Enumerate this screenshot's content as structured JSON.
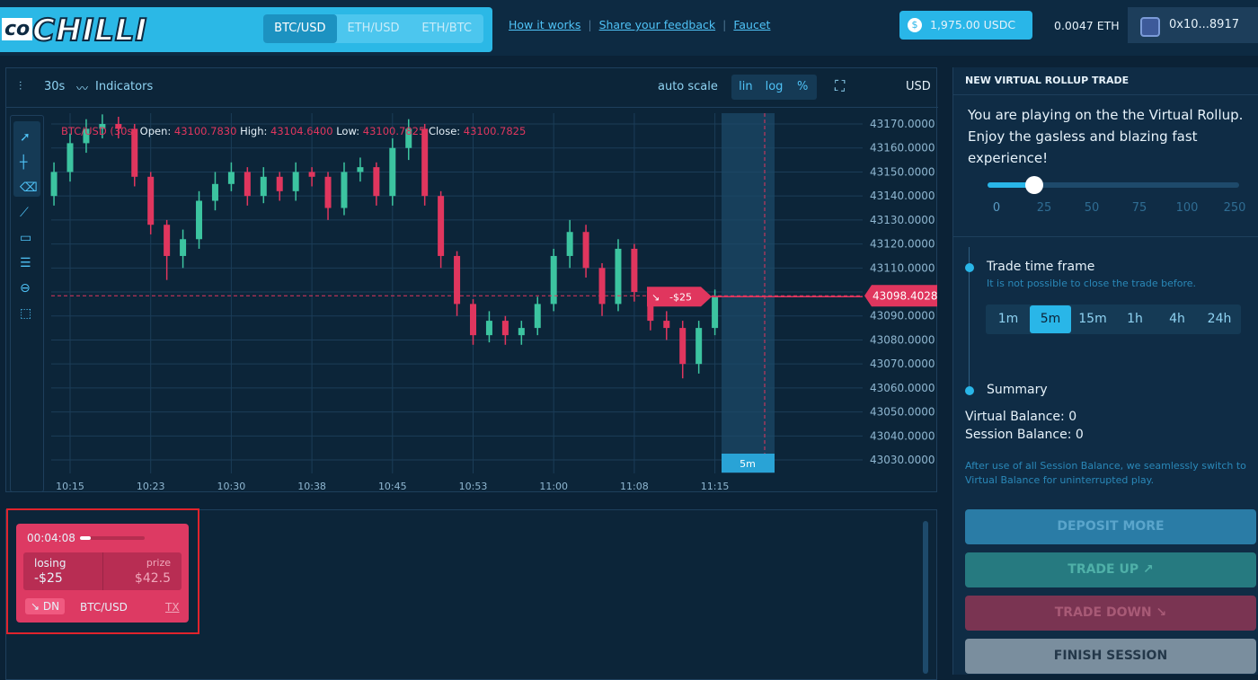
{
  "header": {
    "logo_prefix": "co",
    "logo": "CHILLI",
    "pairs": [
      "BTC/USD",
      "ETH/USD",
      "ETH/BTC"
    ],
    "active_pair": 0,
    "links": [
      "How it works",
      "Share your feedback",
      "Faucet"
    ],
    "balance": "1,975.00 USDC",
    "eth_balance": "0.0047 ETH",
    "wallet": "0x10...8917"
  },
  "toolbar": {
    "interval": "30s",
    "indicators": "Indicators",
    "auto_scale": "auto scale",
    "scales": [
      "lin",
      "log",
      "%"
    ],
    "currency": "USD"
  },
  "chart_data": {
    "type": "candlestick",
    "legend": {
      "title": "BTC/USD (30s)",
      "fields": [
        {
          "label": "Open:",
          "value": "43100.7830"
        },
        {
          "label": "High:",
          "value": "43104.6400"
        },
        {
          "label": "Low:",
          "value": "43100.7825"
        },
        {
          "label": "Close:",
          "value": "43100.7825"
        }
      ]
    },
    "categories": [
      null,
      "10:15",
      null,
      null,
      null,
      null,
      "10:23",
      null,
      null,
      null,
      null,
      "10:30",
      null,
      null,
      null,
      null,
      "10:38",
      null,
      null,
      null,
      null,
      "10:45",
      null,
      null,
      null,
      null,
      "10:53",
      null,
      null,
      null,
      null,
      "11:00",
      null,
      null,
      null,
      null,
      "11:08",
      null,
      null,
      null,
      null,
      "11:15"
    ],
    "open": [
      43140,
      43150,
      43162,
      43168,
      43170,
      43168,
      43148,
      43128,
      43115,
      43122,
      43138,
      43145,
      43150,
      43140,
      43148,
      43142,
      43150,
      43148,
      43135,
      43150,
      43152,
      43140,
      43160,
      43168,
      43140,
      43115,
      43095,
      43082,
      43088,
      43082,
      43085,
      43095,
      43115,
      43125,
      43110,
      43095,
      43118,
      43100,
      43088,
      43085,
      43070,
      43085
    ],
    "high": [
      43154,
      43166,
      43172,
      43174,
      43173,
      43170,
      43150,
      43130,
      43126,
      43142,
      43150,
      43154,
      43152,
      43152,
      43150,
      43154,
      43152,
      43150,
      43154,
      43156,
      43154,
      43164,
      43172,
      43170,
      43142,
      43117,
      43097,
      43092,
      43090,
      43088,
      43098,
      43118,
      43130,
      43128,
      43112,
      43122,
      43120,
      43102,
      43092,
      43088,
      43088,
      43101
    ],
    "low": [
      43136,
      43146,
      43158,
      43164,
      43164,
      43144,
      43124,
      43105,
      43110,
      43118,
      43134,
      43142,
      43136,
      43137,
      43138,
      43138,
      43144,
      43130,
      43132,
      43146,
      43136,
      43136,
      43155,
      43136,
      43110,
      43090,
      43078,
      43079,
      43078,
      43078,
      43082,
      43092,
      43110,
      43106,
      43090,
      43092,
      43096,
      43084,
      43080,
      43064,
      43066,
      43082
    ],
    "close": [
      43150,
      43162,
      43168,
      43170,
      43168,
      43148,
      43128,
      43115,
      43122,
      43138,
      43145,
      43150,
      43140,
      43148,
      43142,
      43150,
      43148,
      43135,
      43150,
      43152,
      43140,
      43160,
      43168,
      43140,
      43115,
      43095,
      43082,
      43088,
      43082,
      43085,
      43095,
      43115,
      43125,
      43110,
      43095,
      43118,
      43100,
      43088,
      43085,
      43070,
      43085,
      43098.4
    ],
    "up_color": "#3cc4a0",
    "down_color": "#e0365e",
    "ylim": [
      43024.4,
      43174.5
    ],
    "yticks": [
      {
        "value": 43030,
        "label": "43030.0000"
      },
      {
        "value": 43040,
        "label": "43040.0000"
      },
      {
        "value": 43050,
        "label": "43050.0000"
      },
      {
        "value": 43060,
        "label": "43060.0000"
      },
      {
        "value": 43070,
        "label": "43070.0000"
      },
      {
        "value": 43080,
        "label": "43080.0000"
      },
      {
        "value": 43090,
        "label": "43090.0000"
      },
      {
        "value": 43100,
        "label": "43100.0000"
      },
      {
        "value": 43110,
        "label": "43110.0000"
      },
      {
        "value": 43120,
        "label": "43120.0000"
      },
      {
        "value": 43130,
        "label": "43130.0000"
      },
      {
        "value": 43140,
        "label": "43140.0000"
      },
      {
        "value": 43150,
        "label": "43150.0000"
      },
      {
        "value": 43160,
        "label": "43160.0000"
      },
      {
        "value": 43170,
        "label": "43170.0000"
      }
    ],
    "grid": true,
    "last_price": 43098.4028,
    "position_label": "-$25",
    "window_label": "5m"
  },
  "panel": {
    "title": "NEW VIRTUAL ROLLUP TRADE",
    "intro": "You are playing on the the Virtual Rollup. Enjoy the gasless and blazing fast experience!",
    "slider_ticks": [
      0,
      25,
      50,
      75,
      100,
      250
    ],
    "timeframe_title": "Trade time frame",
    "timeframe_note": "It is not possible to close the trade before.",
    "timeframes": [
      "1m",
      "5m",
      "15m",
      "1h",
      "4h",
      "24h"
    ],
    "active_timeframe": 1,
    "summary_title": "Summary",
    "virtual_balance": "Virtual Balance: 0",
    "session_balance": "Session Balance: 0",
    "summary_note": "After use of all Session Balance, we seamlessly switch to Virtual Balance for uninterrupted play.",
    "buttons": [
      "DEPOSIT MORE",
      "TRADE UP ↗",
      "TRADE DOWN ↘",
      "FINISH SESSION"
    ]
  },
  "trade_card": {
    "timer": "00:04:08",
    "status": "losing",
    "amount": "-$25",
    "prize_label": "prize",
    "prize": "$42.5",
    "direction": "↘ DN",
    "pair": "BTC/USD",
    "tx": "TX"
  }
}
